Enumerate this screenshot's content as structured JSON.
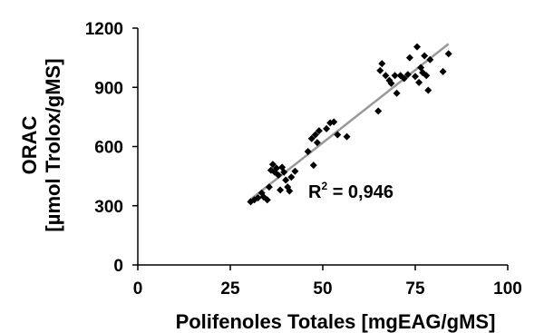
{
  "chart_data": {
    "type": "scatter",
    "title": "",
    "xlabel": "Polifenoles Totales  [mgEAG/gMS]",
    "ylabel_line1": "ORAC",
    "ylabel_line2": "[µmol Trolox/gMS]",
    "xlim": [
      0,
      100
    ],
    "ylim": [
      0,
      1200
    ],
    "x_ticks": [
      "0",
      "25",
      "50",
      "75",
      "100"
    ],
    "y_ticks": [
      "0",
      "300",
      "600",
      "900",
      "1200"
    ],
    "grid": false,
    "legend": "none",
    "annotation": {
      "r2_base": "R",
      "r2_exp": "2",
      "r2_value": " = 0,946"
    },
    "trendline": {
      "x": [
        30,
        84
      ],
      "y": [
        325,
        1120
      ]
    },
    "colors": {
      "points": "#000000",
      "trendline": "#999999",
      "axes": "#000000"
    },
    "points": [
      [
        30.5,
        320
      ],
      [
        31.5,
        330
      ],
      [
        32.5,
        340
      ],
      [
        33.5,
        365
      ],
      [
        34.0,
        345
      ],
      [
        35.0,
        330
      ],
      [
        35.5,
        395
      ],
      [
        36.0,
        480
      ],
      [
        36.5,
        510
      ],
      [
        37.0,
        470
      ],
      [
        37.5,
        490
      ],
      [
        38.0,
        455
      ],
      [
        38.5,
        380
      ],
      [
        39.0,
        495
      ],
      [
        39.5,
        470
      ],
      [
        40.0,
        430
      ],
      [
        40.5,
        395
      ],
      [
        41.0,
        375
      ],
      [
        41.5,
        445
      ],
      [
        42.5,
        475
      ],
      [
        46.0,
        575
      ],
      [
        47.0,
        640
      ],
      [
        47.5,
        505
      ],
      [
        48.0,
        660
      ],
      [
        48.5,
        620
      ],
      [
        49.0,
        680
      ],
      [
        51.0,
        690
      ],
      [
        52.0,
        720
      ],
      [
        53.0,
        725
      ],
      [
        54.0,
        660
      ],
      [
        56.5,
        650
      ],
      [
        65.0,
        780
      ],
      [
        65.5,
        985
      ],
      [
        66.0,
        1020
      ],
      [
        67.0,
        960
      ],
      [
        68.0,
        935
      ],
      [
        68.5,
        920
      ],
      [
        69.5,
        960
      ],
      [
        70.0,
        870
      ],
      [
        71.0,
        960
      ],
      [
        72.0,
        945
      ],
      [
        73.0,
        965
      ],
      [
        73.5,
        1050
      ],
      [
        75.0,
        955
      ],
      [
        75.5,
        1105
      ],
      [
        76.0,
        925
      ],
      [
        76.5,
        1000
      ],
      [
        77.0,
        975
      ],
      [
        77.5,
        1060
      ],
      [
        78.0,
        960
      ],
      [
        78.5,
        885
      ],
      [
        79.0,
        1040
      ],
      [
        82.5,
        980
      ],
      [
        84.0,
        1070
      ]
    ]
  }
}
